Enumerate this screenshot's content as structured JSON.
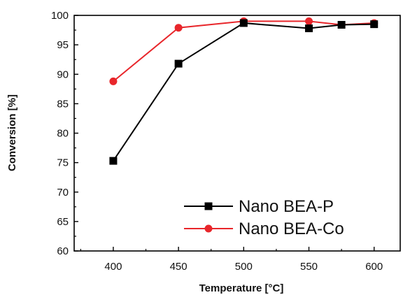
{
  "chart_data": {
    "type": "line",
    "xlabel": "Temperature [°C]",
    "ylabel": "Conversion [%]",
    "xlim": [
      370,
      620
    ],
    "ylim": [
      60,
      100
    ],
    "x_ticks": [
      400,
      450,
      500,
      550,
      600
    ],
    "y_ticks": [
      60,
      65,
      70,
      75,
      80,
      85,
      90,
      95,
      100
    ],
    "grid": false,
    "legend_position": "bottom-right",
    "series": [
      {
        "name": "Nano BEA-P",
        "color": "#000000",
        "marker": "square",
        "x": [
          400,
          450,
          500,
          550,
          575,
          600
        ],
        "y": [
          75.3,
          91.8,
          98.7,
          97.8,
          98.4,
          98.5
        ]
      },
      {
        "name": "Nano BEA-Co",
        "color": "#e8262b",
        "marker": "circle",
        "x": [
          400,
          450,
          500,
          550,
          575,
          600
        ],
        "y": [
          88.8,
          97.9,
          99.0,
          99.0,
          98.4,
          98.7
        ]
      }
    ]
  }
}
